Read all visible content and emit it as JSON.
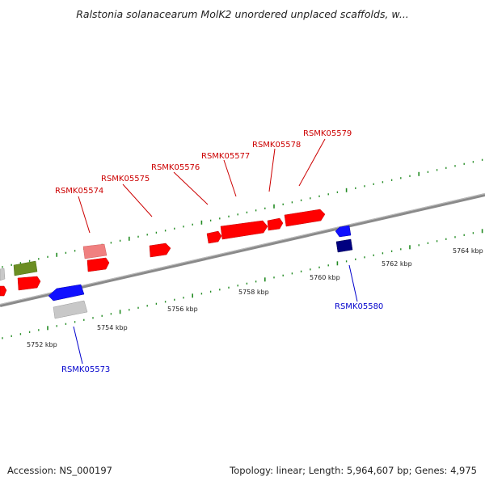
{
  "header": {
    "title": "Ralstonia solanacearum MolK2 unordered unplaced scaffolds, w..."
  },
  "footer": {
    "accession": "Accession: NS_000197",
    "topology": "Topology: linear",
    "length": "Length: 5,964,607 bp",
    "genes": "Genes: 4,975",
    "separator": "; "
  },
  "colors": {
    "forward_gene": "#ff0000",
    "forward_gene_light": "#f08080",
    "reverse_gene": "#0000ff",
    "reverse_gene_dark": "#000080",
    "other_gene_green": "#6b8e23",
    "pseudo_gene": "#c0c0c0",
    "tick": "#228b22",
    "forward_label": "#cc0000",
    "reverse_label": "#0000cc",
    "backbone": "#808080"
  },
  "axis": {
    "unit": "kbp",
    "labels": [
      "5752 kbp",
      "5754 kbp",
      "5756 kbp",
      "5758 kbp",
      "5760 kbp",
      "5762 kbp",
      "5764 kbp"
    ]
  },
  "genes": {
    "forward": [
      {
        "id": "RSMK05574"
      },
      {
        "id": "RSMK05575"
      },
      {
        "id": "RSMK05576"
      },
      {
        "id": "RSMK05577"
      },
      {
        "id": "RSMK05578"
      },
      {
        "id": "RSMK05579"
      }
    ],
    "reverse": [
      {
        "id": "RSMK05573"
      },
      {
        "id": "RSMK05580"
      }
    ]
  }
}
